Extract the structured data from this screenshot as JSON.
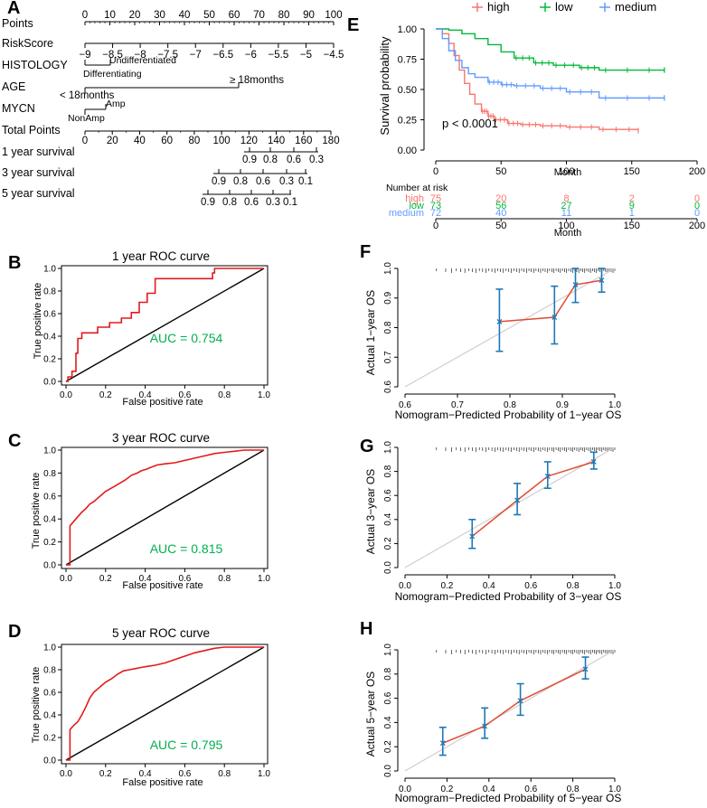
{
  "colors": {
    "km_high": "#f8766d",
    "km_low": "#00ba38",
    "km_medium": "#619cff",
    "roc_line": "#e31a1c",
    "auc_text": "#00b050",
    "calib_line": "#e04b33",
    "calib_err": "#1f78b4",
    "calib_ideal": "#cfcfcf"
  },
  "panels": {
    "a": "A",
    "b": "B",
    "c": "C",
    "d": "D",
    "e": "E",
    "f": "F",
    "g": "G",
    "h": "H"
  },
  "chart_data": [
    {
      "id": "A",
      "type": "nomogram",
      "rows": [
        {
          "label": "Points",
          "scale": [
            0,
            100
          ],
          "ticks": [
            0,
            10,
            20,
            30,
            40,
            50,
            60,
            70,
            80,
            90,
            100
          ]
        },
        {
          "label": "RiskScore",
          "scale": [
            -9,
            -4.5
          ],
          "ticks": [
            "−9",
            "−8.5",
            "−8",
            "−7.5",
            "−7",
            "−6.5",
            "−6",
            "−5.5",
            "−5",
            "−4.5"
          ]
        },
        {
          "label": "HISTOLOGY",
          "levels": [
            "Differentiating",
            "Undifferentiated"
          ]
        },
        {
          "label": "AGE",
          "levels": [
            "< 18months",
            "≥ 18months"
          ]
        },
        {
          "label": "MYCN",
          "levels": [
            "NonAmp",
            "Amp"
          ]
        },
        {
          "label": "Total Points",
          "scale": [
            0,
            180
          ],
          "ticks": [
            0,
            20,
            40,
            60,
            80,
            100,
            120,
            140,
            160,
            180
          ]
        },
        {
          "label": "1 year survival",
          "ticks": [
            "0.9",
            "0.8",
            "0.6",
            "0.3"
          ]
        },
        {
          "label": "3 year survival",
          "ticks": [
            "0.9",
            "0.8",
            "0.6",
            "0.3",
            "0.1"
          ]
        },
        {
          "label": "5 year survival",
          "ticks": [
            "0.9",
            "0.8",
            "0.6",
            "0.3",
            "0.1"
          ]
        }
      ]
    },
    {
      "id": "B",
      "type": "line",
      "title": "1 year ROC curve",
      "xlabel": "False positive rate",
      "ylabel": "True positive rate",
      "xlim": [
        0,
        1
      ],
      "ylim": [
        0,
        1
      ],
      "ticks": [
        "0.0",
        "0.2",
        "0.4",
        "0.6",
        "0.8",
        "1.0"
      ],
      "auc": "AUC = 0.754",
      "x": [
        0,
        0.01,
        0.01,
        0.03,
        0.03,
        0.05,
        0.05,
        0.06,
        0.06,
        0.08,
        0.08,
        0.12,
        0.12,
        0.16,
        0.16,
        0.22,
        0.22,
        0.28,
        0.28,
        0.33,
        0.33,
        0.37,
        0.37,
        0.41,
        0.41,
        0.45,
        0.45,
        0.52,
        0.52,
        0.57,
        0.57,
        0.61,
        0.61,
        0.66,
        0.66,
        0.7,
        0.7,
        0.74,
        0.74,
        0.75,
        0.75,
        0.85,
        0.85,
        1.0
      ],
      "y": [
        0,
        0,
        0.04,
        0.04,
        0.09,
        0.09,
        0.25,
        0.25,
        0.38,
        0.38,
        0.43,
        0.43,
        0.43,
        0.43,
        0.48,
        0.48,
        0.52,
        0.52,
        0.56,
        0.56,
        0.61,
        0.61,
        0.7,
        0.7,
        0.78,
        0.78,
        0.91,
        0.91,
        0.91,
        0.91,
        0.91,
        0.91,
        0.91,
        0.91,
        0.91,
        0.91,
        0.91,
        0.91,
        0.96,
        0.96,
        1.0,
        1.0,
        1.0,
        1.0
      ]
    },
    {
      "id": "C",
      "type": "line",
      "title": "3 year ROC curve",
      "xlabel": "False positive rate",
      "ylabel": "True positive rate",
      "xlim": [
        0,
        1
      ],
      "ylim": [
        0,
        1
      ],
      "ticks": [
        "0.0",
        "0.2",
        "0.4",
        "0.6",
        "0.8",
        "1.0"
      ],
      "auc": "AUC = 0.815",
      "x": [
        0,
        0.02,
        0.02,
        0.04,
        0.06,
        0.08,
        0.1,
        0.12,
        0.14,
        0.16,
        0.18,
        0.2,
        0.22,
        0.25,
        0.28,
        0.3,
        0.33,
        0.36,
        0.38,
        0.4,
        0.43,
        0.46,
        0.5,
        0.55,
        0.6,
        0.65,
        0.7,
        0.75,
        0.8,
        0.85,
        0.9,
        1.0
      ],
      "y": [
        0,
        0,
        0.34,
        0.38,
        0.42,
        0.46,
        0.49,
        0.53,
        0.55,
        0.58,
        0.61,
        0.64,
        0.66,
        0.69,
        0.72,
        0.74,
        0.78,
        0.8,
        0.82,
        0.83,
        0.85,
        0.87,
        0.88,
        0.89,
        0.91,
        0.93,
        0.95,
        0.97,
        0.98,
        0.99,
        1.0,
        1.0
      ]
    },
    {
      "id": "D",
      "type": "line",
      "title": "5 year ROC curve",
      "xlabel": "False positive rate",
      "ylabel": "True positive rate",
      "xlim": [
        0,
        1
      ],
      "ylim": [
        0,
        1
      ],
      "ticks": [
        "0.0",
        "0.2",
        "0.4",
        "0.6",
        "0.8",
        "1.0"
      ],
      "auc": "AUC = 0.795",
      "x": [
        0,
        0.02,
        0.02,
        0.04,
        0.06,
        0.08,
        0.1,
        0.12,
        0.14,
        0.16,
        0.18,
        0.2,
        0.23,
        0.26,
        0.29,
        0.32,
        0.35,
        0.38,
        0.41,
        0.45,
        0.5,
        0.55,
        0.6,
        0.65,
        0.7,
        0.75,
        0.8,
        0.85,
        1.0
      ],
      "y": [
        0,
        0,
        0.27,
        0.31,
        0.34,
        0.4,
        0.47,
        0.55,
        0.6,
        0.63,
        0.66,
        0.69,
        0.72,
        0.76,
        0.79,
        0.8,
        0.81,
        0.82,
        0.83,
        0.84,
        0.86,
        0.89,
        0.92,
        0.95,
        0.97,
        0.99,
        1.0,
        1.0,
        1.0
      ]
    },
    {
      "id": "E",
      "type": "line",
      "subtype": "kaplan-meier",
      "xlabel": "Month",
      "ylabel": "Survival probability",
      "xlim": [
        0,
        200
      ],
      "ylim": [
        0,
        1
      ],
      "xticks": [
        "0",
        "50",
        "100",
        "150",
        "200"
      ],
      "yticks": [
        "0.00",
        "0.25",
        "0.50",
        "0.75",
        "1.00"
      ],
      "pvalue": "p < 0.0001",
      "legend": [
        "high",
        "low",
        "medium"
      ],
      "series": [
        {
          "name": "high",
          "x": [
            0,
            5,
            10,
            14,
            18,
            22,
            26,
            30,
            35,
            40,
            45,
            55,
            65,
            80,
            100,
            125,
            155
          ],
          "y": [
            1.0,
            0.96,
            0.88,
            0.78,
            0.66,
            0.55,
            0.46,
            0.38,
            0.32,
            0.28,
            0.25,
            0.22,
            0.21,
            0.2,
            0.19,
            0.17,
            0.16
          ]
        },
        {
          "name": "low",
          "x": [
            0,
            10,
            20,
            30,
            40,
            50,
            60,
            75,
            90,
            110,
            125,
            175
          ],
          "y": [
            1.0,
            0.99,
            0.96,
            0.92,
            0.87,
            0.81,
            0.76,
            0.72,
            0.7,
            0.68,
            0.66,
            0.66
          ]
        },
        {
          "name": "medium",
          "x": [
            0,
            5,
            10,
            15,
            20,
            25,
            30,
            40,
            50,
            60,
            80,
            100,
            125,
            175
          ],
          "y": [
            1.0,
            0.92,
            0.82,
            0.74,
            0.68,
            0.63,
            0.6,
            0.56,
            0.54,
            0.53,
            0.51,
            0.48,
            0.43,
            0.43
          ]
        }
      ],
      "risk_table": {
        "title": "Number at risk",
        "times": [
          "0",
          "50",
          "100",
          "150",
          "200"
        ],
        "rows": [
          {
            "name": "high",
            "counts": [
              "75",
              "20",
              "8",
              "2",
              "0"
            ]
          },
          {
            "name": "low",
            "counts": [
              "73",
              "56",
              "27",
              "9",
              "0"
            ]
          },
          {
            "name": "medium",
            "counts": [
              "72",
              "40",
              "11",
              "1",
              "0"
            ]
          }
        ]
      }
    },
    {
      "id": "F",
      "type": "line",
      "subtype": "calibration",
      "xlabel": "Nomogram−Predicted Probability of 1−year OS",
      "ylabel": "Actual 1−year OS",
      "xlim": [
        0.6,
        1.0
      ],
      "ylim": [
        0.6,
        1.0
      ],
      "xticks": [
        "0.6",
        "0.7",
        "0.8",
        "0.9",
        "1.0"
      ],
      "yticks": [
        "0.6",
        "0.7",
        "0.8",
        "0.9",
        "1.0"
      ],
      "x": [
        0.78,
        0.885,
        0.925,
        0.975
      ],
      "y": [
        0.82,
        0.835,
        0.945,
        0.96
      ],
      "lo": [
        0.72,
        0.745,
        0.885,
        0.92
      ],
      "hi": [
        0.93,
        0.94,
        1.0,
        1.0
      ]
    },
    {
      "id": "G",
      "type": "line",
      "subtype": "calibration",
      "xlabel": "Nomogram−Predicted Probability of 3−year OS",
      "ylabel": "Actual 3−year OS",
      "xlim": [
        0,
        1
      ],
      "ylim": [
        0,
        1
      ],
      "xticks": [
        "0.0",
        "0.2",
        "0.4",
        "0.6",
        "0.8",
        "1.0"
      ],
      "yticks": [
        "0.0",
        "0.2",
        "0.4",
        "0.6",
        "0.8",
        "1.0"
      ],
      "x": [
        0.32,
        0.535,
        0.68,
        0.9
      ],
      "y": [
        0.26,
        0.56,
        0.76,
        0.88
      ],
      "lo": [
        0.16,
        0.44,
        0.66,
        0.82
      ],
      "hi": [
        0.4,
        0.7,
        0.88,
        0.96
      ]
    },
    {
      "id": "H",
      "type": "line",
      "subtype": "calibration",
      "xlabel": "Nomogram−Predicted Probability of 5−year OS",
      "ylabel": "Actual 5−year OS",
      "xlim": [
        0,
        1
      ],
      "ylim": [
        0,
        1
      ],
      "xticks": [
        "0.0",
        "0.2",
        "0.4",
        "0.6",
        "0.8",
        "1.0"
      ],
      "yticks": [
        "0.0",
        "0.2",
        "0.4",
        "0.6",
        "0.8",
        "1.0"
      ],
      "x": [
        0.18,
        0.38,
        0.55,
        0.86
      ],
      "y": [
        0.23,
        0.37,
        0.58,
        0.84
      ],
      "lo": [
        0.13,
        0.27,
        0.46,
        0.76
      ],
      "hi": [
        0.36,
        0.52,
        0.72,
        0.94
      ]
    }
  ]
}
